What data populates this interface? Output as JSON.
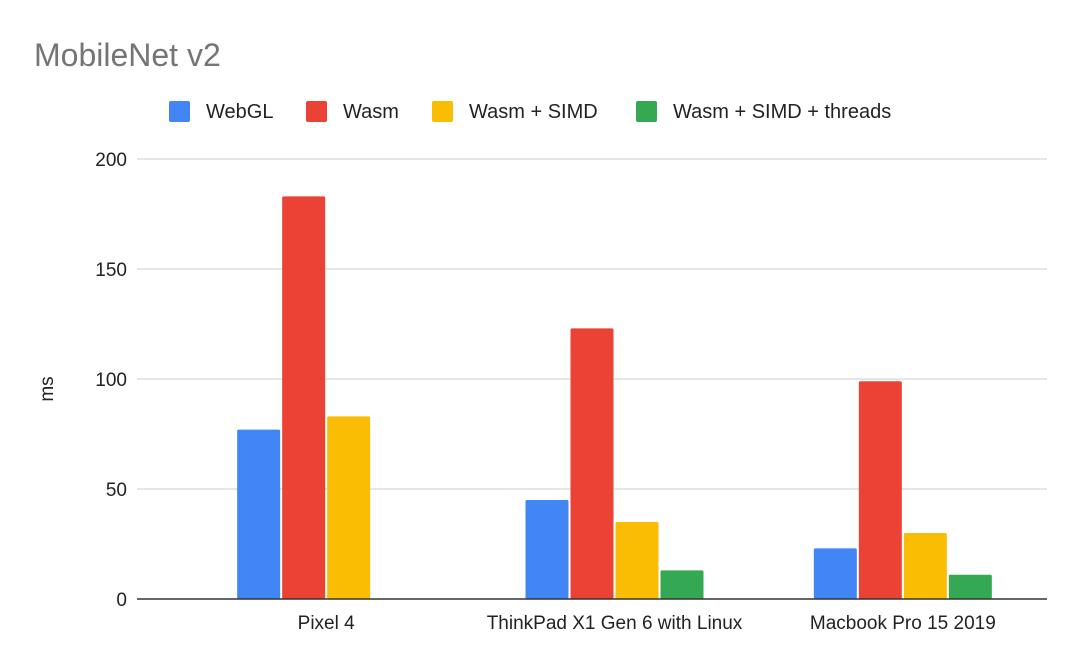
{
  "chart_data": {
    "type": "bar",
    "title": "MobileNet v2",
    "ylabel": "ms",
    "xlabel": "",
    "ylim": [
      0,
      200
    ],
    "yticks": [
      0,
      50,
      100,
      150,
      200
    ],
    "grid": true,
    "legend_position": "top",
    "categories": [
      "Pixel 4",
      "ThinkPad X1 Gen 6 with Linux",
      "Macbook Pro 15 2019"
    ],
    "series": [
      {
        "name": "WebGL",
        "color": "#4285f4",
        "values": [
          77,
          45,
          23
        ]
      },
      {
        "name": "Wasm",
        "color": "#ea4335",
        "values": [
          183,
          123,
          99
        ]
      },
      {
        "name": "Wasm + SIMD",
        "color": "#fbbc04",
        "values": [
          83,
          35,
          30
        ]
      },
      {
        "name": "Wasm + SIMD + threads",
        "color": "#34a853",
        "values": [
          null,
          13,
          11
        ]
      }
    ]
  }
}
